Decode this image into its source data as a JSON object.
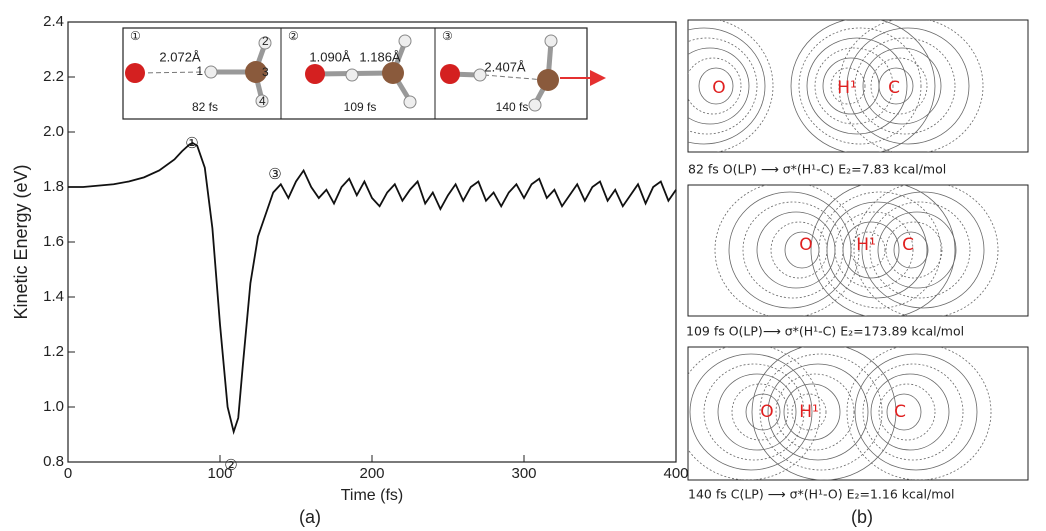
{
  "chart_data": {
    "type": "line",
    "x_label": "Time (fs)",
    "y_label": "Kinetic Energy (eV)",
    "x": [
      0,
      10,
      20,
      30,
      40,
      50,
      60,
      70,
      75,
      80,
      82,
      85,
      90,
      95,
      100,
      105,
      109,
      112,
      115,
      120,
      125,
      130,
      135,
      140,
      145,
      150,
      155,
      160,
      165,
      170,
      175,
      180,
      185,
      190,
      195,
      200,
      205,
      210,
      215,
      220,
      225,
      230,
      235,
      240,
      245,
      250,
      255,
      260,
      265,
      270,
      275,
      280,
      285,
      290,
      295,
      300,
      305,
      310,
      315,
      320,
      325,
      330,
      335,
      340,
      345,
      350,
      355,
      360,
      365,
      370,
      375,
      380,
      385,
      390,
      395,
      400
    ],
    "values": [
      1.8,
      1.8,
      1.805,
      1.81,
      1.82,
      1.835,
      1.86,
      1.9,
      1.93,
      1.955,
      1.96,
      1.95,
      1.87,
      1.65,
      1.3,
      1.0,
      0.91,
      0.96,
      1.15,
      1.45,
      1.62,
      1.7,
      1.78,
      1.81,
      1.76,
      1.82,
      1.86,
      1.8,
      1.76,
      1.79,
      1.74,
      1.8,
      1.83,
      1.77,
      1.82,
      1.76,
      1.73,
      1.78,
      1.81,
      1.75,
      1.79,
      1.82,
      1.74,
      1.78,
      1.72,
      1.77,
      1.81,
      1.75,
      1.8,
      1.82,
      1.75,
      1.78,
      1.73,
      1.78,
      1.81,
      1.76,
      1.81,
      1.83,
      1.76,
      1.79,
      1.73,
      1.77,
      1.81,
      1.75,
      1.8,
      1.82,
      1.75,
      1.79,
      1.73,
      1.77,
      1.81,
      1.74,
      1.8,
      1.82,
      1.75,
      1.79
    ],
    "color": "#111111",
    "xlim": [
      0,
      400
    ],
    "ylim": [
      0.8,
      2.4
    ],
    "xticks": [
      0,
      100,
      200,
      300,
      400
    ],
    "yticks": [
      0.8,
      {
        "value": 1,
        "label": "1.0"
      },
      1.2,
      1.4,
      1.6,
      1.8,
      {
        "value": 2,
        "label": "2.0"
      },
      2.2,
      2.4
    ],
    "annotations": [
      "①",
      "②",
      "③"
    ]
  },
  "insets": [
    {
      "label": "①",
      "distances": [
        "2.072Å"
      ],
      "time": "82 fs"
    },
    {
      "label": "②",
      "distances": [
        "1.090Å",
        "1.186Å"
      ],
      "time": "109 fs"
    },
    {
      "label": "③",
      "distances": [
        "2.407Å"
      ],
      "time": "140 fs"
    }
  ],
  "atom_numbers": [
    "1",
    "2",
    "3",
    "4"
  ],
  "panel_b": [
    {
      "atoms": [
        "O",
        "H¹",
        "C"
      ],
      "caption": "82 fs   O(LP) ⟶ σ*(H¹-C)   E₂=7.83 kcal/mol"
    },
    {
      "atoms": [
        "O",
        "H¹",
        "C"
      ],
      "caption": "109 fs  O(LP)⟶  σ*(H¹-C)  E₂=173.89 kcal/mol"
    },
    {
      "atoms": [
        "O",
        "H¹",
        "C"
      ],
      "caption": "140 fs  C(LP) ⟶ σ*(H¹-O)  E₂=1.16 kcal/mol"
    }
  ],
  "panel_labels": [
    "(a)",
    "(b)"
  ]
}
